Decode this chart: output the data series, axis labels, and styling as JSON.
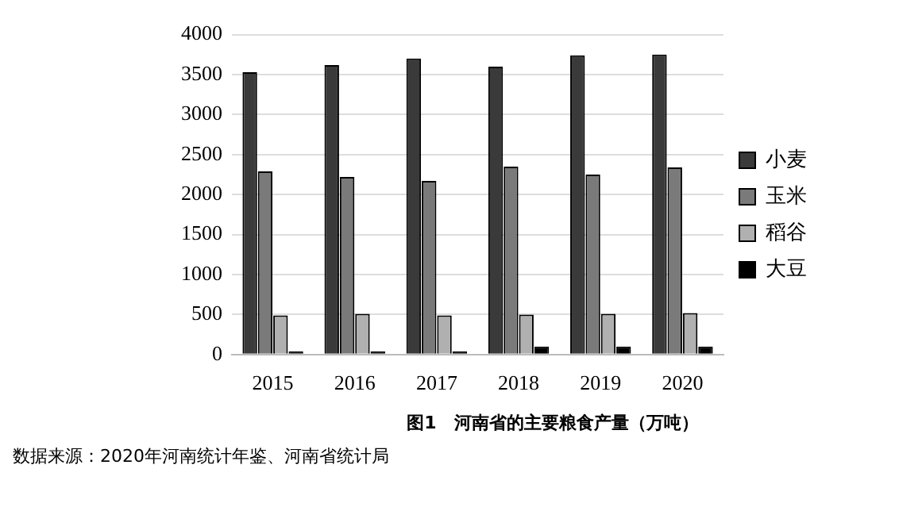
{
  "chart_data": {
    "type": "bar",
    "title": "图1　河南省的主要粮食产量（万吨）",
    "categories": [
      "2015",
      "2016",
      "2017",
      "2018",
      "2019",
      "2020"
    ],
    "series": [
      {
        "name": "小麦",
        "color": "#3a3a3a",
        "values": [
          3530,
          3620,
          3700,
          3600,
          3740,
          3750
        ]
      },
      {
        "name": "玉米",
        "color": "#7a7a7a",
        "values": [
          2290,
          2220,
          2170,
          2350,
          2250,
          2340
        ]
      },
      {
        "name": "稻谷",
        "color": "#b0b0b0",
        "values": [
          490,
          510,
          490,
          500,
          510,
          520
        ]
      },
      {
        "name": "大豆",
        "color": "#000000",
        "values": [
          40,
          40,
          40,
          100,
          100,
          100
        ]
      }
    ],
    "ylim": [
      0,
      4000
    ],
    "yticks": [
      0,
      500,
      1000,
      1500,
      2000,
      2500,
      3000,
      3500,
      4000
    ],
    "grid": "y",
    "legend": "right",
    "annotations": [
      "数据来源：2020年河南统计年鉴、河南省统计局"
    ]
  }
}
